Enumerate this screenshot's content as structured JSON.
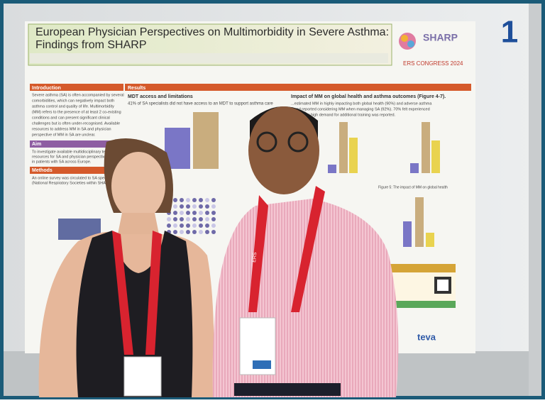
{
  "photo": {
    "corner_number": "1",
    "poster": {
      "title": "European Physician Perspectives on Multimorbidity in Severe Asthma:",
      "title_line2": "Findings from SHARP",
      "logo": "SHARP",
      "congress": "ERS CONGRESS 2024",
      "sections": {
        "introduction": {
          "heading": "Introduction",
          "lines": [
            "Severe asthma (SA) is often accompanied by several",
            "comorbidities, which can negatively impact both",
            "asthma control and quality of life. Multimorbidity",
            "(MM) refers to the presence of at least 2 co-existing",
            "conditions and can present significant clinical",
            "challenges but is often under-recognised. Available",
            "resources to address MM in SA and physician",
            "perspective of MM in SA are unclear."
          ]
        },
        "aim": {
          "heading": "Aim",
          "lines": [
            "To investigate available multidisciplinary team (MDT)",
            "resources for SA and physician perspectives on MM",
            "in patients with SA across Europe."
          ]
        },
        "methods": {
          "heading": "Methods",
          "lines": [
            "An online survey was circulated to SA specialists",
            "(National Respiratory Societies within SHARP)..."
          ]
        },
        "results": {
          "heading": "Results",
          "subheading": "MDT access and limitations",
          "lines": [
            "41% of SA specialists did not have access to an MDT to support asthma care"
          ]
        },
        "impact": {
          "heading": "Impact of MM on global health and asthma outcomes (Figure 4-7).",
          "lines": [
            "...estimated MM in highly impacting both global health (90%) and adverse asthma",
            "...and reported considering MM when managing SA (92%). 70% felt experienced",
            "...However high demand for additional training was reported."
          ]
        },
        "caption": "Figure 5: The impact of MM on global health"
      },
      "sponsor": "teva"
    },
    "lanyard": "ERS"
  }
}
